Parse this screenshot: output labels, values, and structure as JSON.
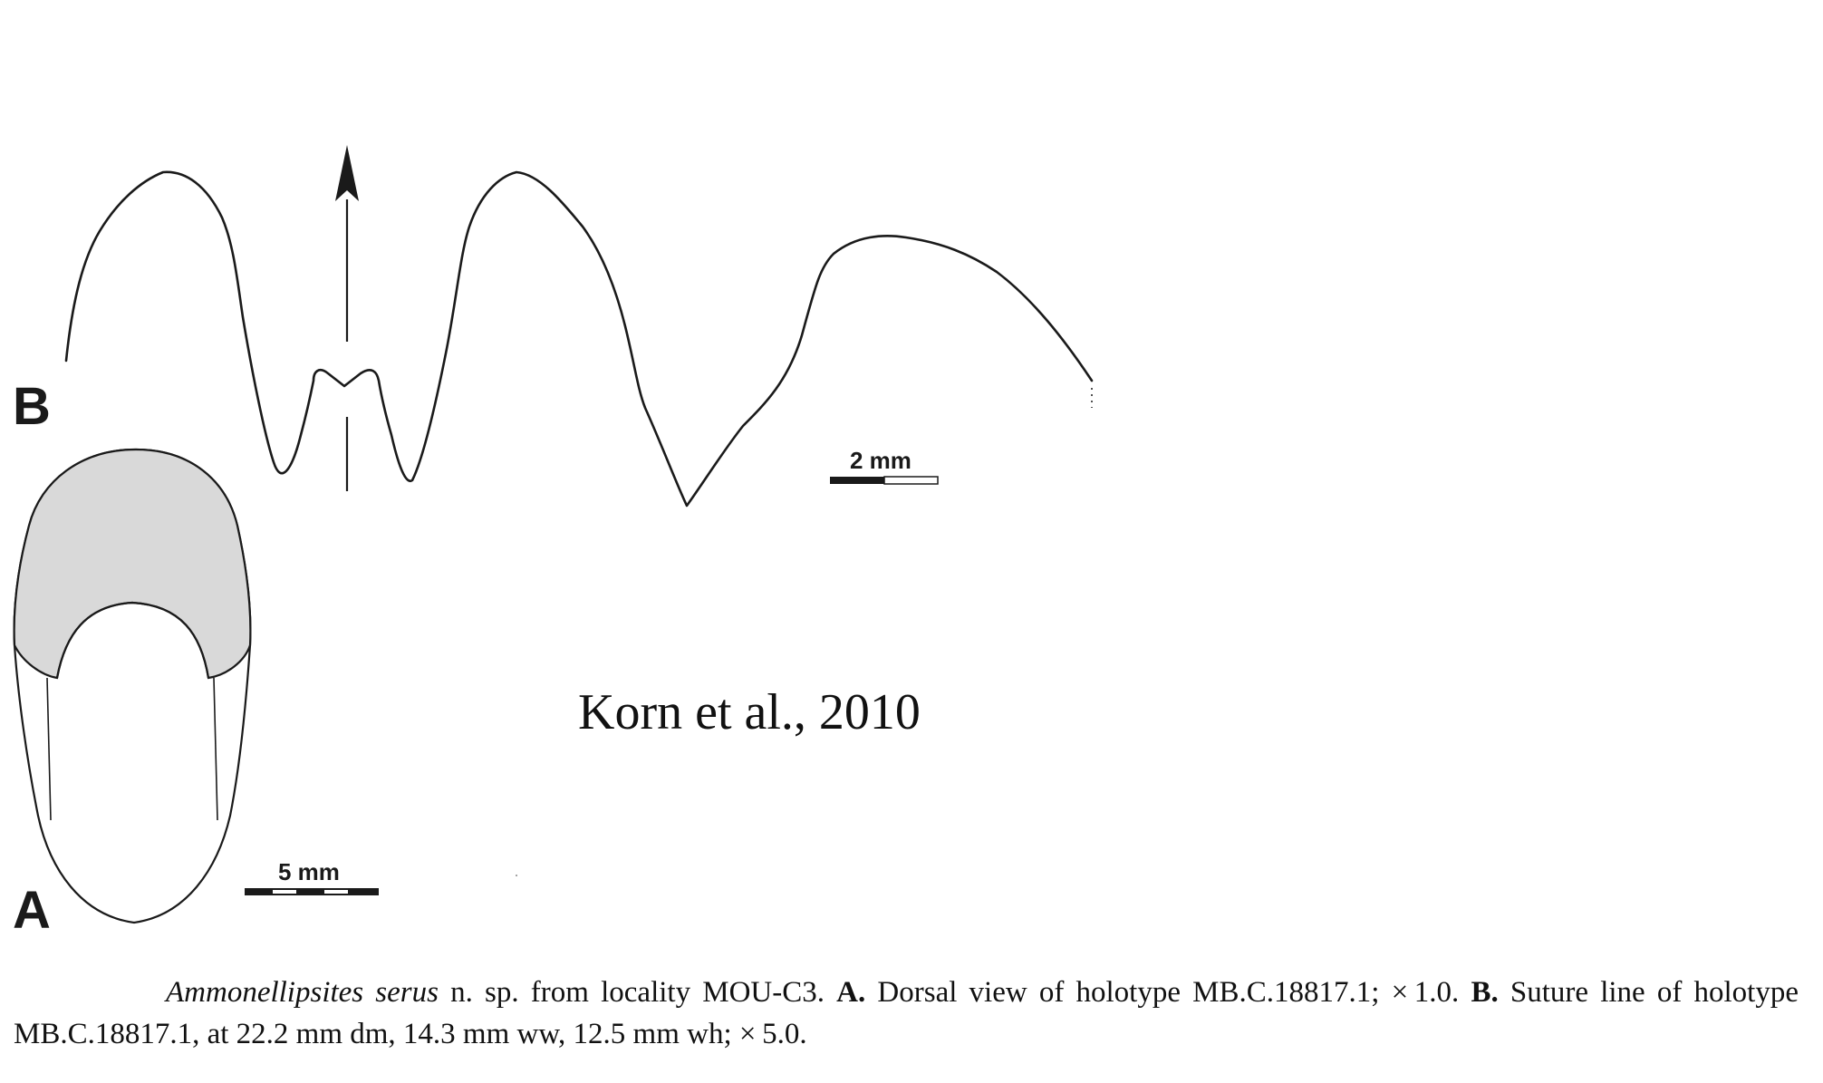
{
  "figure": {
    "panel_b_label": "B",
    "panel_a_label": "A",
    "scale_b": "2 mm",
    "scale_a": "5 mm",
    "credit": "Korn et al., 2010"
  },
  "caption": {
    "species": "Ammonellipsites serus",
    "text1": " n. sp. from locality MOU-C3. ",
    "label_a": "A.",
    "text2": " Dorsal view of holotype MB.C.18817.1; × 1.0. ",
    "label_b": "B.",
    "text3": " Suture line of holotype MB.C.18817.1, at 22.2 mm dm, 14.3 mm ww, 12.5 mm wh; × 5.0."
  },
  "colors": {
    "line": "#1a1a1a",
    "shaded_whorl": "#d9d9d9"
  }
}
